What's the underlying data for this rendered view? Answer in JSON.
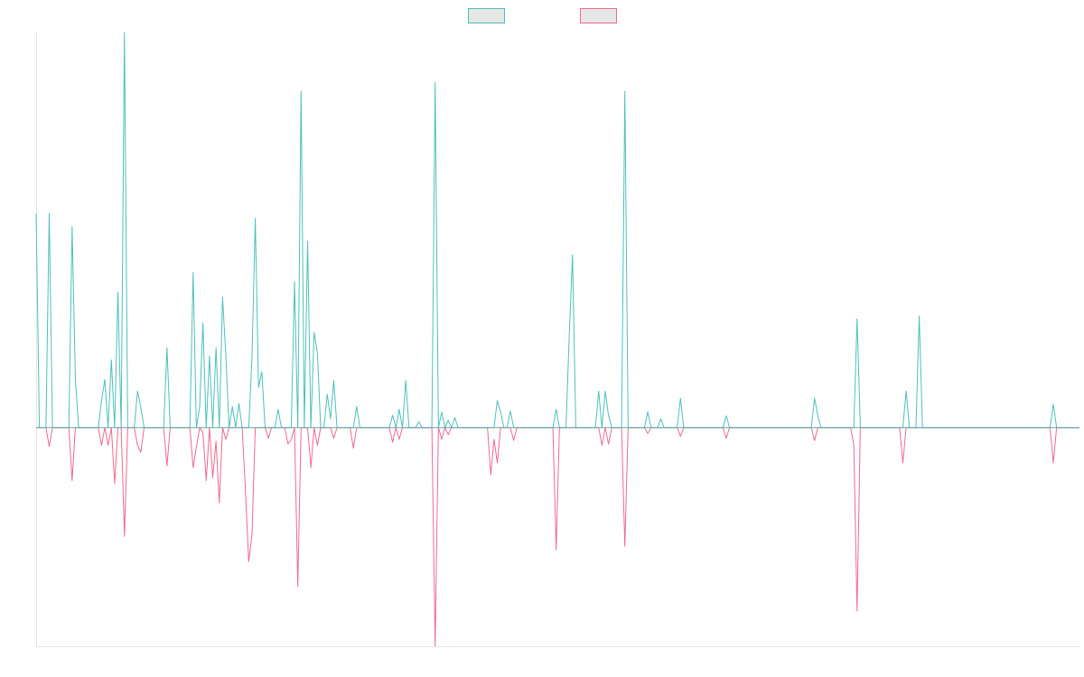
{
  "chart_data": {
    "type": "line",
    "x_range": [
      0,
      319
    ],
    "ylim": [
      -3.72,
      6.72
    ],
    "grid": false,
    "legend": "top-center",
    "series": [
      {
        "color": "#4dc0bb",
        "fill": "#e6e6e6",
        "points": [
          [
            0,
            3.64
          ],
          [
            1,
            0
          ],
          [
            3,
            0
          ],
          [
            4,
            3.64
          ],
          [
            5,
            0
          ],
          [
            10,
            0
          ],
          [
            11,
            3.42
          ],
          [
            12,
            0.83
          ],
          [
            13,
            0
          ],
          [
            19,
            0
          ],
          [
            20,
            0.46
          ],
          [
            21,
            0.82
          ],
          [
            22,
            0
          ],
          [
            23,
            1.15
          ],
          [
            24,
            0
          ],
          [
            25,
            2.3
          ],
          [
            26,
            0
          ],
          [
            27,
            6.72
          ],
          [
            28,
            0
          ],
          [
            30,
            0
          ],
          [
            31,
            0.62
          ],
          [
            32,
            0.35
          ],
          [
            33,
            0
          ],
          [
            39,
            0
          ],
          [
            40,
            1.36
          ],
          [
            41,
            0
          ],
          [
            47,
            0
          ],
          [
            48,
            2.64
          ],
          [
            49,
            0
          ],
          [
            50,
            0.35
          ],
          [
            51,
            1.78
          ],
          [
            52,
            0
          ],
          [
            53,
            1.22
          ],
          [
            54,
            0
          ],
          [
            55,
            1.36
          ],
          [
            56,
            0
          ],
          [
            57,
            2.22
          ],
          [
            58,
            1.22
          ],
          [
            59,
            0
          ],
          [
            60,
            0.36
          ],
          [
            61,
            0
          ],
          [
            62,
            0.41
          ],
          [
            63,
            0
          ],
          [
            65,
            0
          ],
          [
            66,
            1.2
          ],
          [
            67,
            3.56
          ],
          [
            68,
            0.68
          ],
          [
            69,
            0.95
          ],
          [
            70,
            0
          ],
          [
            73,
            0
          ],
          [
            74,
            0.31
          ],
          [
            75,
            0
          ],
          [
            77,
            0
          ],
          [
            78,
            0
          ],
          [
            79,
            2.48
          ],
          [
            80,
            0
          ],
          [
            81,
            5.72
          ],
          [
            82,
            0
          ],
          [
            83,
            3.17
          ],
          [
            84,
            0
          ],
          [
            85,
            1.62
          ],
          [
            86,
            1.27
          ],
          [
            87,
            0
          ],
          [
            88,
            0
          ],
          [
            89,
            0.57
          ],
          [
            90,
            0.15
          ],
          [
            91,
            0.8
          ],
          [
            92,
            0
          ],
          [
            97,
            0
          ],
          [
            98,
            0.36
          ],
          [
            99,
            0
          ],
          [
            108,
            0
          ],
          [
            109,
            0.21
          ],
          [
            110,
            0
          ],
          [
            111,
            0.31
          ],
          [
            112,
            0
          ],
          [
            113,
            0.8
          ],
          [
            114,
            0
          ],
          [
            116,
            0
          ],
          [
            117,
            0.1
          ],
          [
            118,
            0
          ],
          [
            121,
            0
          ],
          [
            122,
            5.87
          ],
          [
            123,
            0
          ],
          [
            124,
            0.26
          ],
          [
            125,
            0
          ],
          [
            126,
            0.12
          ],
          [
            127,
            0
          ],
          [
            128,
            0.17
          ],
          [
            129,
            0
          ],
          [
            140,
            0
          ],
          [
            141,
            0.46
          ],
          [
            142,
            0.27
          ],
          [
            143,
            0
          ],
          [
            144,
            0
          ],
          [
            145,
            0.28
          ],
          [
            146,
            0
          ],
          [
            158,
            0
          ],
          [
            159,
            0.31
          ],
          [
            160,
            0
          ],
          [
            162,
            0
          ],
          [
            163,
            1.57
          ],
          [
            164,
            2.94
          ],
          [
            165,
            0
          ],
          [
            171,
            0
          ],
          [
            172,
            0.62
          ],
          [
            173,
            0
          ],
          [
            174,
            0.62
          ],
          [
            175,
            0.21
          ],
          [
            176,
            0
          ],
          [
            179,
            0
          ],
          [
            180,
            5.72
          ],
          [
            181,
            0
          ],
          [
            186,
            0
          ],
          [
            187,
            0.27
          ],
          [
            188,
            0
          ],
          [
            190,
            0
          ],
          [
            191,
            0.15
          ],
          [
            192,
            0
          ],
          [
            196,
            0
          ],
          [
            197,
            0.5
          ],
          [
            198,
            0
          ],
          [
            210,
            0
          ],
          [
            211,
            0.2
          ],
          [
            212,
            0
          ],
          [
            237,
            0
          ],
          [
            238,
            0.5
          ],
          [
            239,
            0.2
          ],
          [
            240,
            0
          ],
          [
            250,
            0
          ],
          [
            251,
            1.85
          ],
          [
            252,
            0
          ],
          [
            265,
            0
          ],
          [
            266,
            0.62
          ],
          [
            267,
            0
          ],
          [
            269,
            0
          ],
          [
            270,
            1.9
          ],
          [
            271,
            0
          ],
          [
            308,
            0
          ],
          [
            309,
            0
          ],
          [
            310,
            0
          ],
          [
            311,
            0.4
          ],
          [
            312,
            0
          ],
          [
            319,
            0
          ]
        ]
      },
      {
        "color": "#f06a8f",
        "fill": "#e6e6e6",
        "points": [
          [
            0,
            0
          ],
          [
            3,
            0
          ],
          [
            4,
            -0.32
          ],
          [
            5,
            0
          ],
          [
            10,
            0
          ],
          [
            11,
            -0.9
          ],
          [
            12,
            0
          ],
          [
            19,
            0
          ],
          [
            20,
            -0.3
          ],
          [
            21,
            0
          ],
          [
            22,
            -0.3
          ],
          [
            23,
            0
          ],
          [
            24,
            -0.95
          ],
          [
            25,
            0
          ],
          [
            26,
            0
          ],
          [
            27,
            -1.85
          ],
          [
            28,
            0
          ],
          [
            30,
            0
          ],
          [
            31,
            -0.3
          ],
          [
            32,
            -0.42
          ],
          [
            33,
            0
          ],
          [
            39,
            0
          ],
          [
            40,
            -0.65
          ],
          [
            41,
            0
          ],
          [
            47,
            0
          ],
          [
            48,
            -0.68
          ],
          [
            49,
            -0.33
          ],
          [
            50,
            0
          ],
          [
            51,
            -0.08
          ],
          [
            52,
            -0.9
          ],
          [
            53,
            0
          ],
          [
            54,
            -0.85
          ],
          [
            55,
            -0.23
          ],
          [
            56,
            -1.28
          ],
          [
            57,
            0
          ],
          [
            58,
            -0.2
          ],
          [
            59,
            0
          ],
          [
            63,
            0
          ],
          [
            64,
            -1.08
          ],
          [
            65,
            -2.28
          ],
          [
            66,
            -1.82
          ],
          [
            67,
            0
          ],
          [
            70,
            0
          ],
          [
            71,
            -0.18
          ],
          [
            72,
            0
          ],
          [
            76,
            0
          ],
          [
            77,
            -0.28
          ],
          [
            78,
            -0.2
          ],
          [
            79,
            0
          ],
          [
            80,
            -2.7
          ],
          [
            81,
            0
          ],
          [
            83,
            0
          ],
          [
            84,
            -0.68
          ],
          [
            85,
            0
          ],
          [
            86,
            -0.3
          ],
          [
            87,
            0
          ],
          [
            90,
            0
          ],
          [
            91,
            -0.18
          ],
          [
            92,
            0
          ],
          [
            96,
            0
          ],
          [
            97,
            -0.35
          ],
          [
            98,
            0
          ],
          [
            108,
            0
          ],
          [
            109,
            -0.25
          ],
          [
            110,
            0
          ],
          [
            111,
            -0.2
          ],
          [
            112,
            0
          ],
          [
            121,
            0
          ],
          [
            122,
            -3.72
          ],
          [
            123,
            0
          ],
          [
            124,
            -0.2
          ],
          [
            125,
            0
          ],
          [
            126,
            -0.12
          ],
          [
            127,
            0
          ],
          [
            138,
            0
          ],
          [
            139,
            -0.8
          ],
          [
            140,
            -0.2
          ],
          [
            141,
            -0.6
          ],
          [
            142,
            0
          ],
          [
            145,
            0
          ],
          [
            146,
            -0.22
          ],
          [
            147,
            0
          ],
          [
            158,
            0
          ],
          [
            159,
            -2.08
          ],
          [
            160,
            0
          ],
          [
            172,
            0
          ],
          [
            173,
            -0.3
          ],
          [
            174,
            0
          ],
          [
            175,
            -0.28
          ],
          [
            176,
            0
          ],
          [
            179,
            0
          ],
          [
            180,
            -2.02
          ],
          [
            181,
            0
          ],
          [
            186,
            0
          ],
          [
            187,
            -0.1
          ],
          [
            188,
            0
          ],
          [
            196,
            0
          ],
          [
            197,
            -0.15
          ],
          [
            198,
            0
          ],
          [
            210,
            0
          ],
          [
            211,
            -0.18
          ],
          [
            212,
            0
          ],
          [
            237,
            0
          ],
          [
            238,
            -0.22
          ],
          [
            239,
            0
          ],
          [
            249,
            0
          ],
          [
            250,
            -0.28
          ],
          [
            251,
            -3.12
          ],
          [
            252,
            0
          ],
          [
            264,
            0
          ],
          [
            265,
            -0.6
          ],
          [
            266,
            0
          ],
          [
            308,
            0
          ],
          [
            309,
            0
          ],
          [
            310,
            0
          ],
          [
            311,
            -0.6
          ],
          [
            312,
            0
          ],
          [
            319,
            0
          ]
        ]
      }
    ]
  }
}
